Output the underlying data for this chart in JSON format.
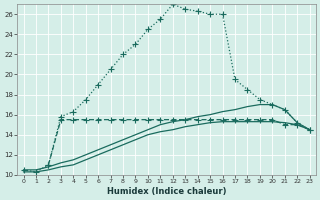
{
  "xlabel": "Humidex (Indice chaleur)",
  "background_color": "#d5eee8",
  "grid_color": "#b8d8d0",
  "line_color": "#1a6b5e",
  "ylim": [
    10,
    27
  ],
  "xlim": [
    -0.5,
    23.5
  ],
  "yticks": [
    10,
    12,
    14,
    16,
    18,
    20,
    22,
    24,
    26
  ],
  "xticks": [
    0,
    1,
    2,
    3,
    4,
    5,
    6,
    7,
    8,
    9,
    10,
    11,
    12,
    13,
    14,
    15,
    16,
    17,
    18,
    19,
    20,
    21,
    22,
    23
  ],
  "line_dotted_x": [
    0,
    1,
    2,
    3,
    4,
    5,
    6,
    7,
    8,
    9,
    10,
    11,
    12,
    13,
    14,
    15,
    16,
    17,
    18,
    19,
    20,
    21,
    22,
    23
  ],
  "line_dotted_y": [
    10.5,
    10.3,
    11.0,
    15.8,
    16.3,
    17.5,
    19.0,
    20.5,
    22.0,
    23.0,
    24.5,
    25.5,
    27.0,
    26.5,
    26.3,
    26.0,
    26.0,
    19.5,
    18.5,
    17.5,
    17.0,
    16.5,
    15.2,
    14.5
  ],
  "line_dashed_x": [
    2,
    3,
    4,
    5,
    6,
    7,
    8,
    9,
    10,
    11,
    12,
    13,
    14,
    15,
    16,
    17,
    18,
    19,
    20,
    21,
    22,
    23
  ],
  "line_dashed_y": [
    11.0,
    15.5,
    15.5,
    15.5,
    15.5,
    15.5,
    15.5,
    15.5,
    15.5,
    15.5,
    15.5,
    15.5,
    15.5,
    15.5,
    15.5,
    15.5,
    15.5,
    15.5,
    15.5,
    15.0,
    15.0,
    14.5
  ],
  "line_solid1_x": [
    0,
    1,
    2,
    3,
    4,
    5,
    6,
    7,
    8,
    9,
    10,
    11,
    12,
    13,
    14,
    15,
    16,
    17,
    18,
    19,
    20,
    21,
    22,
    23
  ],
  "line_solid1_y": [
    10.5,
    10.5,
    10.8,
    11.2,
    11.5,
    12.0,
    12.5,
    13.0,
    13.5,
    14.0,
    14.5,
    15.0,
    15.3,
    15.5,
    15.8,
    16.0,
    16.3,
    16.5,
    16.8,
    17.0,
    17.0,
    16.5,
    15.2,
    14.5
  ],
  "line_solid2_x": [
    0,
    1,
    2,
    3,
    4,
    5,
    6,
    7,
    8,
    9,
    10,
    11,
    12,
    13,
    14,
    15,
    16,
    17,
    18,
    19,
    20,
    21,
    22,
    23
  ],
  "line_solid2_y": [
    10.3,
    10.3,
    10.5,
    10.8,
    11.0,
    11.5,
    12.0,
    12.5,
    13.0,
    13.5,
    14.0,
    14.3,
    14.5,
    14.8,
    15.0,
    15.2,
    15.3,
    15.3,
    15.3,
    15.3,
    15.3,
    15.2,
    15.0,
    14.5
  ]
}
